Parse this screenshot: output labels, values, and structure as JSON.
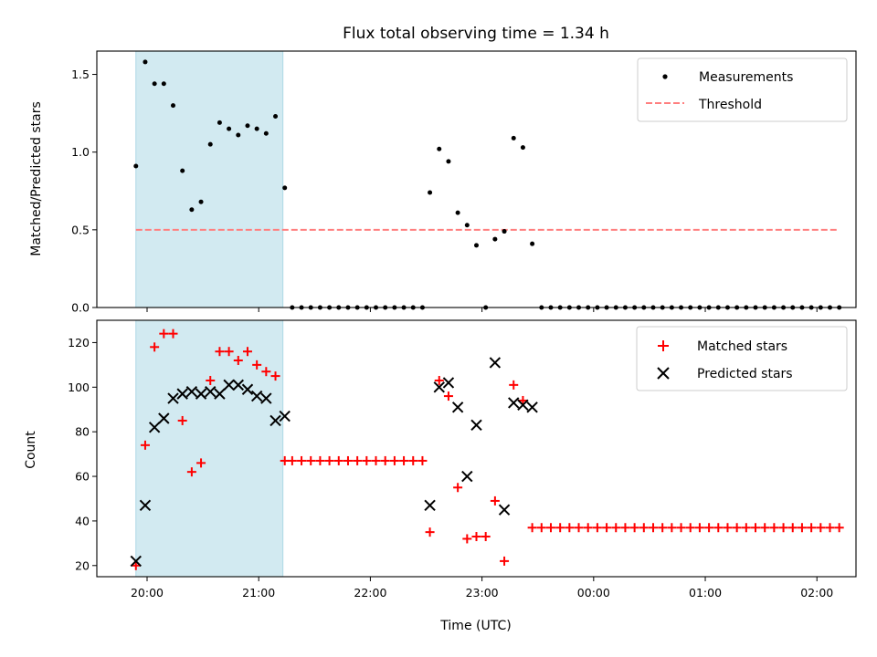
{
  "chart_data": [
    {
      "type": "scatter",
      "title": "Flux total observing time = 1.34 h",
      "xlabel": "",
      "ylabel": "Matched/Predicted stars",
      "ylim": [
        0,
        1.65
      ],
      "yticks": [
        "0.0",
        "0.5",
        "1.0",
        "1.5"
      ],
      "ytick_values": [
        0,
        0.5,
        1.0,
        1.5
      ],
      "legend_position": "top-right",
      "threshold": {
        "name": "Threshold",
        "value": 0.5,
        "color": "#ff7f7f",
        "style": "dashed"
      },
      "highlight_region": {
        "start": "19:54",
        "end": "21:13",
        "color": "#add8e6"
      },
      "series": [
        {
          "name": "Measurements",
          "color": "#000000",
          "marker": "dot",
          "points": [
            [
              "19:54",
              0.91
            ],
            [
              "19:59",
              1.58
            ],
            [
              "20:04",
              1.44
            ],
            [
              "20:09",
              1.44
            ],
            [
              "20:14",
              1.3
            ],
            [
              "20:19",
              0.88
            ],
            [
              "20:24",
              0.63
            ],
            [
              "20:29",
              0.68
            ],
            [
              "20:34",
              1.05
            ],
            [
              "20:39",
              1.19
            ],
            [
              "20:44",
              1.15
            ],
            [
              "20:49",
              1.11
            ],
            [
              "20:54",
              1.17
            ],
            [
              "20:59",
              1.15
            ],
            [
              "21:04",
              1.12
            ],
            [
              "21:09",
              1.23
            ],
            [
              "21:14",
              0.77
            ],
            [
              "21:18",
              0
            ],
            [
              "21:23",
              0
            ],
            [
              "21:28",
              0
            ],
            [
              "21:33",
              0
            ],
            [
              "21:38",
              0
            ],
            [
              "21:43",
              0
            ],
            [
              "21:48",
              0
            ],
            [
              "21:53",
              0
            ],
            [
              "21:58",
              0
            ],
            [
              "22:03",
              0
            ],
            [
              "22:08",
              0
            ],
            [
              "22:13",
              0
            ],
            [
              "22:18",
              0
            ],
            [
              "22:23",
              0
            ],
            [
              "22:28",
              0
            ],
            [
              "22:32",
              0.74
            ],
            [
              "22:37",
              1.02
            ],
            [
              "22:42",
              0.94
            ],
            [
              "22:47",
              0.61
            ],
            [
              "22:52",
              0.53
            ],
            [
              "22:57",
              0.4
            ],
            [
              "23:02",
              0
            ],
            [
              "23:07",
              0.44
            ],
            [
              "23:12",
              0.49
            ],
            [
              "23:17",
              1.09
            ],
            [
              "23:22",
              1.03
            ],
            [
              "23:27",
              0.41
            ],
            [
              "23:32",
              0
            ],
            [
              "23:37",
              0
            ],
            [
              "23:42",
              0
            ],
            [
              "23:47",
              0
            ],
            [
              "23:52",
              0
            ],
            [
              "23:57",
              0
            ],
            [
              "00:02",
              0
            ],
            [
              "00:07",
              0
            ],
            [
              "00:12",
              0
            ],
            [
              "00:17",
              0
            ],
            [
              "00:22",
              0
            ],
            [
              "00:27",
              0
            ],
            [
              "00:32",
              0
            ],
            [
              "00:37",
              0
            ],
            [
              "00:42",
              0
            ],
            [
              "00:47",
              0
            ],
            [
              "00:52",
              0
            ],
            [
              "00:57",
              0
            ],
            [
              "01:02",
              0
            ],
            [
              "01:07",
              0
            ],
            [
              "01:12",
              0
            ],
            [
              "01:17",
              0
            ],
            [
              "01:22",
              0
            ],
            [
              "01:27",
              0
            ],
            [
              "01:32",
              0
            ],
            [
              "01:37",
              0
            ],
            [
              "01:42",
              0
            ],
            [
              "01:47",
              0
            ],
            [
              "01:52",
              0
            ],
            [
              "01:57",
              0
            ],
            [
              "02:02",
              0
            ],
            [
              "02:07",
              0
            ],
            [
              "02:12",
              0
            ]
          ]
        }
      ]
    },
    {
      "type": "scatter",
      "title": "",
      "xlabel": "Time (UTC)",
      "ylabel": "Count",
      "ylim": [
        15,
        130
      ],
      "yticks": [
        "20",
        "40",
        "60",
        "80",
        "100",
        "120"
      ],
      "ytick_values": [
        20,
        40,
        60,
        80,
        100,
        120
      ],
      "xlim": [
        "19:33",
        "02:21"
      ],
      "xticks": [
        "20:00",
        "21:00",
        "22:00",
        "23:00",
        "00:00",
        "01:00",
        "02:00"
      ],
      "legend_position": "top-right",
      "highlight_region": {
        "start": "19:54",
        "end": "21:13",
        "color": "#add8e6"
      },
      "series": [
        {
          "name": "Matched stars",
          "color": "#ff0000",
          "marker": "plus",
          "points": [
            [
              "19:54",
              20
            ],
            [
              "19:59",
              74
            ],
            [
              "20:04",
              118
            ],
            [
              "20:09",
              124
            ],
            [
              "20:14",
              124
            ],
            [
              "20:19",
              85
            ],
            [
              "20:24",
              62
            ],
            [
              "20:29",
              66
            ],
            [
              "20:34",
              103
            ],
            [
              "20:39",
              116
            ],
            [
              "20:44",
              116
            ],
            [
              "20:49",
              112
            ],
            [
              "20:54",
              116
            ],
            [
              "20:59",
              110
            ],
            [
              "21:04",
              107
            ],
            [
              "21:09",
              105
            ],
            [
              "21:14",
              67
            ],
            [
              "21:18",
              67
            ],
            [
              "21:23",
              67
            ],
            [
              "21:28",
              67
            ],
            [
              "21:33",
              67
            ],
            [
              "21:38",
              67
            ],
            [
              "21:43",
              67
            ],
            [
              "21:48",
              67
            ],
            [
              "21:53",
              67
            ],
            [
              "21:58",
              67
            ],
            [
              "22:03",
              67
            ],
            [
              "22:08",
              67
            ],
            [
              "22:13",
              67
            ],
            [
              "22:18",
              67
            ],
            [
              "22:23",
              67
            ],
            [
              "22:28",
              67
            ],
            [
              "22:32",
              35
            ],
            [
              "22:37",
              103
            ],
            [
              "22:42",
              96
            ],
            [
              "22:47",
              55
            ],
            [
              "22:52",
              32
            ],
            [
              "22:57",
              33
            ],
            [
              "23:02",
              33
            ],
            [
              "23:07",
              49
            ],
            [
              "23:12",
              22
            ],
            [
              "23:17",
              101
            ],
            [
              "23:22",
              94
            ],
            [
              "23:27",
              37
            ],
            [
              "23:32",
              37
            ],
            [
              "23:37",
              37
            ],
            [
              "23:42",
              37
            ],
            [
              "23:47",
              37
            ],
            [
              "23:52",
              37
            ],
            [
              "23:57",
              37
            ],
            [
              "00:02",
              37
            ],
            [
              "00:07",
              37
            ],
            [
              "00:12",
              37
            ],
            [
              "00:17",
              37
            ],
            [
              "00:22",
              37
            ],
            [
              "00:27",
              37
            ],
            [
              "00:32",
              37
            ],
            [
              "00:37",
              37
            ],
            [
              "00:42",
              37
            ],
            [
              "00:47",
              37
            ],
            [
              "00:52",
              37
            ],
            [
              "00:57",
              37
            ],
            [
              "01:02",
              37
            ],
            [
              "01:07",
              37
            ],
            [
              "01:12",
              37
            ],
            [
              "01:17",
              37
            ],
            [
              "01:22",
              37
            ],
            [
              "01:27",
              37
            ],
            [
              "01:32",
              37
            ],
            [
              "01:37",
              37
            ],
            [
              "01:42",
              37
            ],
            [
              "01:47",
              37
            ],
            [
              "01:52",
              37
            ],
            [
              "01:57",
              37
            ],
            [
              "02:02",
              37
            ],
            [
              "02:07",
              37
            ],
            [
              "02:12",
              37
            ]
          ]
        },
        {
          "name": "Predicted stars",
          "color": "#000000",
          "marker": "x",
          "points": [
            [
              "19:54",
              22
            ],
            [
              "19:59",
              47
            ],
            [
              "20:04",
              82
            ],
            [
              "20:09",
              86
            ],
            [
              "20:14",
              95
            ],
            [
              "20:19",
              97
            ],
            [
              "20:24",
              98
            ],
            [
              "20:29",
              97
            ],
            [
              "20:34",
              98
            ],
            [
              "20:39",
              97
            ],
            [
              "20:44",
              101
            ],
            [
              "20:49",
              101
            ],
            [
              "20:54",
              99
            ],
            [
              "20:59",
              96
            ],
            [
              "21:04",
              95
            ],
            [
              "21:09",
              85
            ],
            [
              "21:14",
              87
            ],
            [
              "22:32",
              47
            ],
            [
              "22:37",
              100
            ],
            [
              "22:42",
              102
            ],
            [
              "22:47",
              91
            ],
            [
              "22:52",
              60
            ],
            [
              "22:57",
              83
            ],
            [
              "23:07",
              111
            ],
            [
              "23:12",
              45
            ],
            [
              "23:17",
              93
            ],
            [
              "23:22",
              92
            ],
            [
              "23:27",
              91
            ]
          ]
        }
      ]
    }
  ]
}
